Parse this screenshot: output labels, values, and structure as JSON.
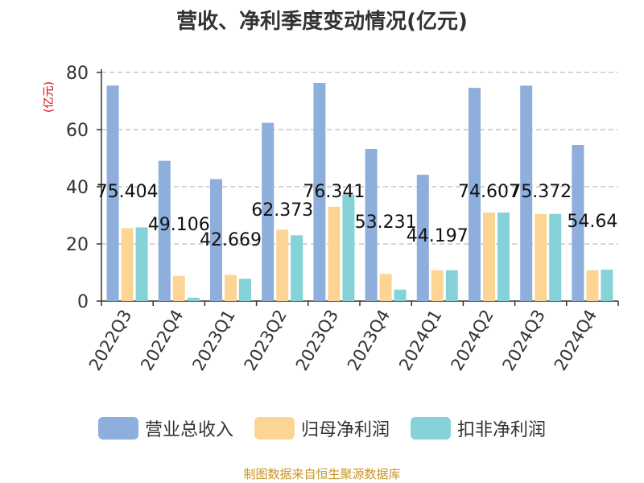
{
  "title": "营收、净利季度变动情况(亿元)",
  "source": "制图数据来自恒生聚源数据库",
  "colors": {
    "grid": "#bbbbbb",
    "axis": "#333333",
    "text": "#333333",
    "unit": "#e00000",
    "source": "#c8952a"
  },
  "chart_data": {
    "type": "bar",
    "title": "营收、净利季度变动情况(亿元)",
    "ylabel": "(亿元)",
    "ylim": [
      0,
      80
    ],
    "yticks": [
      0,
      20,
      40,
      60,
      80
    ],
    "grid": true,
    "legend_position": "bottom",
    "categories": [
      "2022Q3",
      "2022Q4",
      "2023Q1",
      "2023Q2",
      "2023Q3",
      "2023Q4",
      "2024Q1",
      "2024Q2",
      "2024Q3",
      "2024Q4"
    ],
    "series": [
      {
        "name": "营业总收入",
        "color": "#8eaedb",
        "values": [
          75.404,
          49.106,
          42.669,
          62.373,
          76.341,
          53.231,
          44.197,
          74.607,
          75.372,
          54.64
        ]
      },
      {
        "name": "归母净利润",
        "color": "#fcd594",
        "values": [
          25.5,
          8.8,
          9.2,
          25.0,
          33.0,
          9.5,
          10.8,
          31.0,
          30.5,
          10.8
        ]
      },
      {
        "name": "扣非净利润",
        "color": "#85d3d8",
        "values": [
          25.8,
          1.2,
          7.8,
          23.0,
          37.2,
          4.0,
          10.8,
          31.0,
          30.5,
          11.0
        ]
      }
    ],
    "data_labels": [
      "75.404",
      "49.106",
      "42.669",
      "62.373",
      "76.341",
      "53.231",
      "44.197",
      "74.607",
      "75.372",
      "54.64"
    ]
  }
}
